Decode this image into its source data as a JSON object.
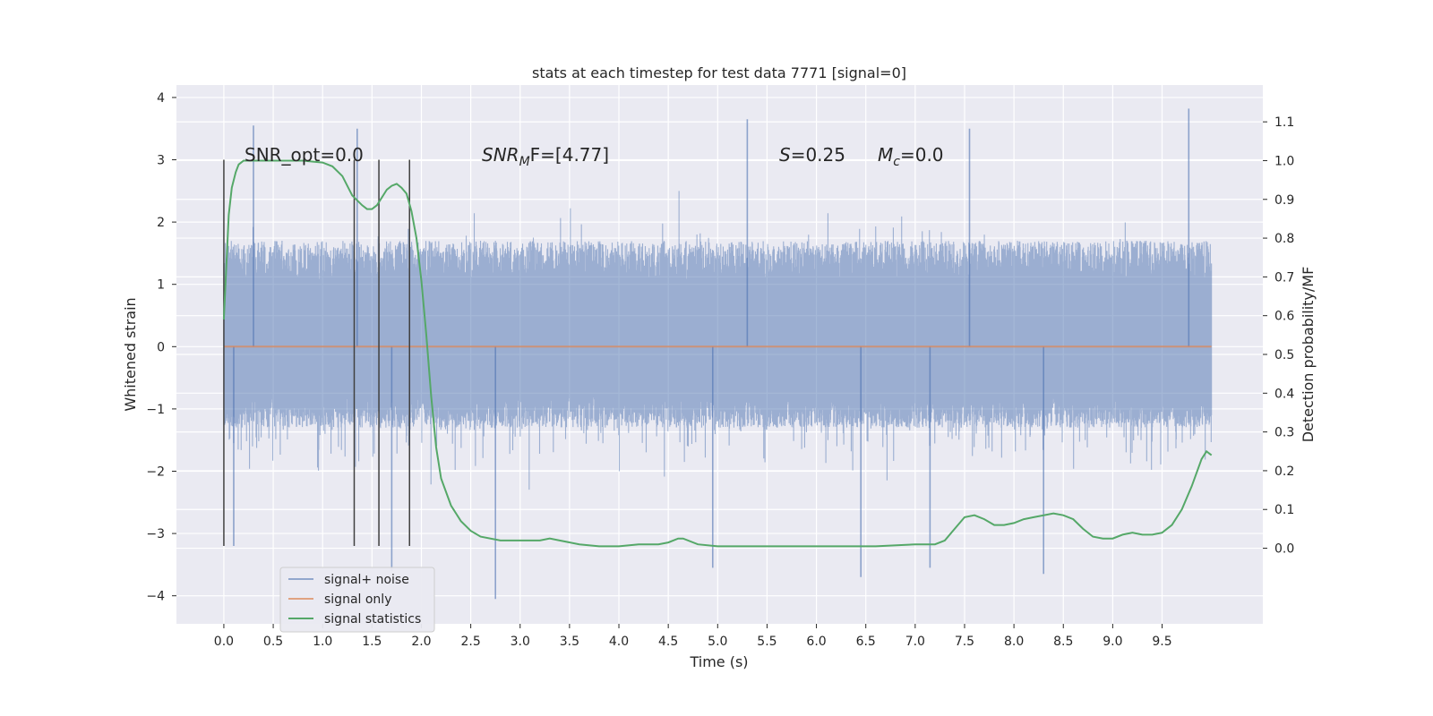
{
  "chart_data": {
    "type": "line",
    "title": "stats at each timestep for test data 7771 [signal=0]",
    "xlabel": "Time (s)",
    "ylabel": "Whitened strain",
    "ylabel_right": "Detection probability/MF",
    "xlim": [
      -0.48,
      10.52
    ],
    "ylim": [
      -4.45,
      4.2
    ],
    "ylim_right": [
      -0.195,
      1.195
    ],
    "xticks": [
      "0.0",
      "0.5",
      "1.0",
      "1.5",
      "2.0",
      "2.5",
      "3.0",
      "3.5",
      "4.0",
      "4.5",
      "5.0",
      "5.5",
      "6.0",
      "6.5",
      "7.0",
      "7.5",
      "8.0",
      "8.5",
      "9.0",
      "9.5"
    ],
    "yticks": [
      "4",
      "3",
      "2",
      "1",
      "0",
      "−1",
      "−2",
      "−3",
      "−4"
    ],
    "yticks_right": [
      "1.1",
      "1.0",
      "0.9",
      "0.8",
      "0.7",
      "0.6",
      "0.5",
      "0.4",
      "0.3",
      "0.2",
      "0.1",
      "0.0"
    ],
    "grid": true,
    "legend_position": "lower-left",
    "annotations": {
      "snr_opt_text": "SNR_opt=0.0",
      "snr_mf_main": "SNR",
      "snr_mf_sub": "M",
      "snr_mf_rest": "F=[4.77]",
      "s_italic": "S",
      "s_value": "=0.25",
      "mc_main": "M",
      "mc_sub": "c",
      "mc_value": "=0.0"
    },
    "vlines_x": [
      0.0,
      1.32,
      1.57,
      1.88
    ],
    "vlines_range": [
      -3.2,
      3.0
    ],
    "series": [
      {
        "name": "signal+ noise",
        "color": "#4c72b0",
        "axis": "left",
        "x_range": [
          0.0,
          10.0
        ],
        "band_typical": [
          -1.3,
          1.7
        ],
        "band_extreme": [
          -3.2,
          3.5
        ],
        "peaks": [
          [
            0.3,
            3.55
          ],
          [
            1.35,
            3.5
          ],
          [
            5.3,
            3.65
          ],
          [
            7.55,
            3.5
          ],
          [
            9.77,
            3.82
          ],
          [
            0.1,
            -3.2
          ],
          [
            1.7,
            -3.6
          ],
          [
            2.75,
            -4.05
          ],
          [
            6.45,
            -3.7
          ],
          [
            8.3,
            -3.65
          ],
          [
            7.15,
            -3.55
          ],
          [
            4.95,
            -3.55
          ]
        ]
      },
      {
        "name": "signal only",
        "color": "#dd8452",
        "axis": "left",
        "x": [
          0.0,
          10.0
        ],
        "y": [
          0.0,
          0.0
        ]
      },
      {
        "name": "signal statistics",
        "color": "#55a868",
        "axis": "right",
        "x": [
          0.0,
          0.05,
          0.08,
          0.12,
          0.15,
          0.2,
          0.3,
          0.5,
          0.8,
          1.0,
          1.1,
          1.2,
          1.3,
          1.4,
          1.45,
          1.5,
          1.55,
          1.6,
          1.65,
          1.7,
          1.75,
          1.8,
          1.85,
          1.9,
          1.95,
          2.0,
          2.05,
          2.1,
          2.15,
          2.2,
          2.3,
          2.4,
          2.5,
          2.6,
          2.8,
          3.0,
          3.2,
          3.3,
          3.4,
          3.6,
          3.8,
          4.0,
          4.2,
          4.4,
          4.5,
          4.6,
          4.65,
          4.8,
          5.0,
          5.3,
          5.8,
          6.2,
          6.6,
          7.0,
          7.2,
          7.3,
          7.4,
          7.5,
          7.6,
          7.7,
          7.8,
          7.9,
          8.0,
          8.1,
          8.2,
          8.4,
          8.5,
          8.6,
          8.7,
          8.8,
          8.9,
          9.0,
          9.1,
          9.2,
          9.3,
          9.4,
          9.5,
          9.6,
          9.7,
          9.8,
          9.9,
          9.95,
          10.0
        ],
        "y": [
          0.59,
          0.86,
          0.93,
          0.97,
          0.99,
          1.0,
          1.0,
          1.0,
          1.0,
          0.995,
          0.985,
          0.96,
          0.91,
          0.885,
          0.875,
          0.875,
          0.885,
          0.905,
          0.925,
          0.935,
          0.94,
          0.93,
          0.915,
          0.87,
          0.8,
          0.69,
          0.55,
          0.39,
          0.26,
          0.18,
          0.11,
          0.07,
          0.045,
          0.03,
          0.02,
          0.02,
          0.02,
          0.025,
          0.02,
          0.01,
          0.005,
          0.005,
          0.01,
          0.01,
          0.015,
          0.025,
          0.025,
          0.01,
          0.005,
          0.005,
          0.005,
          0.005,
          0.005,
          0.01,
          0.01,
          0.02,
          0.05,
          0.08,
          0.085,
          0.075,
          0.06,
          0.06,
          0.065,
          0.075,
          0.08,
          0.09,
          0.085,
          0.075,
          0.05,
          0.03,
          0.025,
          0.025,
          0.035,
          0.04,
          0.035,
          0.035,
          0.04,
          0.06,
          0.1,
          0.16,
          0.23,
          0.25,
          0.24
        ]
      }
    ]
  }
}
